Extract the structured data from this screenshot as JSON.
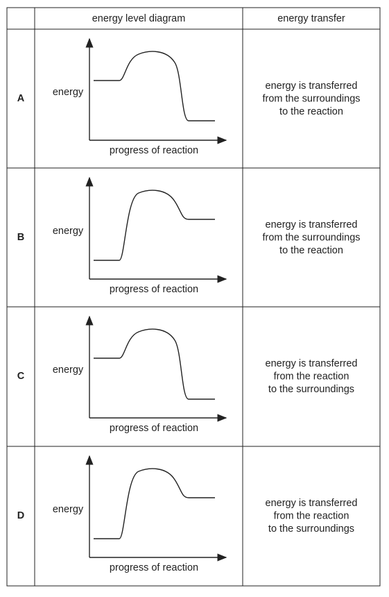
{
  "table": {
    "header": [
      "",
      "energy level diagram",
      "energy transfer"
    ],
    "rows": [
      {
        "label": "A",
        "y_axis": "energy",
        "x_axis": "progress of reaction",
        "transfer": [
          "energy is transferred",
          "from the surroundings",
          "to the reaction"
        ]
      },
      {
        "label": "B",
        "y_axis": "energy",
        "x_axis": "progress of reaction",
        "transfer": [
          "energy is transferred",
          "from the surroundings",
          "to the reaction"
        ]
      },
      {
        "label": "C",
        "y_axis": "energy",
        "x_axis": "progress of reaction",
        "transfer": [
          "energy is transferred",
          "from the reaction",
          "to the surroundings"
        ]
      },
      {
        "label": "D",
        "y_axis": "energy",
        "x_axis": "progress of reaction",
        "transfer": [
          "energy is transferred",
          "from the reaction",
          "to the surroundings"
        ]
      }
    ]
  }
}
